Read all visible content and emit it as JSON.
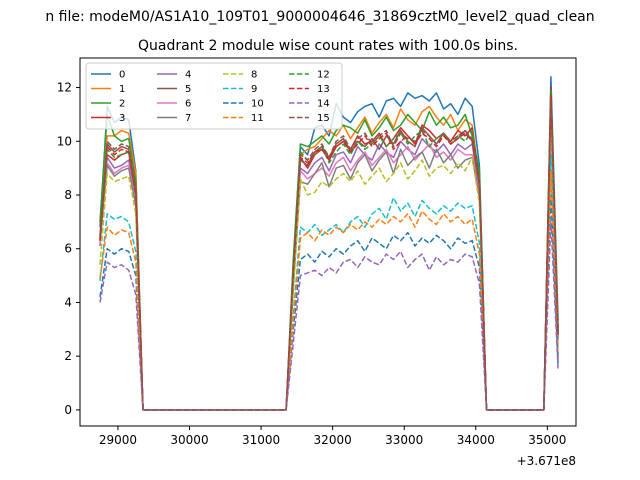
{
  "figure": {
    "suptitle": "n file: modeM0/AS1A10_109T01_9000004646_31869cztM0_level2_quad_clean",
    "title": "Quadrant 2 module wise count rates with 100.0s bins.",
    "offset_label": "+3.671e8"
  },
  "chart_data": {
    "type": "line",
    "title": "Quadrant 2 module wise count rates with 100.0s bins.",
    "xlabel": "",
    "ylabel": "",
    "x_offset": 367100000,
    "xlim": [
      28470,
      35400
    ],
    "ylim": [
      -0.6,
      13.1
    ],
    "x_ticks": [
      29000,
      30000,
      31000,
      32000,
      33000,
      34000,
      35000
    ],
    "y_ticks": [
      0,
      2,
      4,
      6,
      8,
      10,
      12
    ],
    "grid": false,
    "legend_position": "top-left",
    "legend_columns": 4,
    "x": [
      28750,
      28850,
      28950,
      29050,
      29150,
      29250,
      29350,
      29450,
      29550,
      29650,
      29750,
      29850,
      29950,
      30050,
      30150,
      30250,
      30350,
      30450,
      30550,
      30650,
      30750,
      30850,
      30950,
      31050,
      31150,
      31250,
      31350,
      31450,
      31550,
      31650,
      31750,
      31850,
      31950,
      32050,
      32150,
      32250,
      32350,
      32450,
      32550,
      32650,
      32750,
      32850,
      32950,
      33050,
      33150,
      33250,
      33350,
      33450,
      33550,
      33650,
      33750,
      33850,
      33950,
      34050,
      34150,
      34250,
      34350,
      34450,
      34550,
      34650,
      34750,
      34850,
      34950,
      35050,
      35150
    ],
    "series": [
      {
        "name": "0",
        "color": "#1f77b4",
        "style": "solid",
        "values": [
          6.8,
          11.3,
          10.7,
          10.9,
          10.8,
          8.9,
          0,
          0,
          0,
          0,
          0,
          0,
          0,
          0,
          0,
          0,
          0,
          0,
          0,
          0,
          0,
          0,
          0,
          0,
          0,
          0,
          0,
          5.5,
          9.8,
          9.5,
          10.5,
          10.6,
          10.2,
          11.4,
          10.9,
          10.7,
          11.1,
          11.3,
          11.4,
          10.9,
          11.5,
          11.6,
          11.3,
          11.8,
          11.6,
          11.7,
          11.5,
          11.8,
          11.2,
          11.4,
          11.0,
          11.6,
          11.3,
          9.1,
          0,
          0,
          0,
          0,
          0,
          0,
          0,
          0,
          0,
          12.4,
          3.3
        ]
      },
      {
        "name": "1",
        "color": "#ff7f0e",
        "style": "solid",
        "values": [
          6.3,
          10.2,
          10.2,
          10.4,
          10.3,
          8.8,
          0,
          0,
          0,
          0,
          0,
          0,
          0,
          0,
          0,
          0,
          0,
          0,
          0,
          0,
          0,
          0,
          0,
          0,
          0,
          0,
          0,
          5.0,
          9.5,
          9.7,
          9.8,
          10.1,
          10.4,
          10.2,
          10.6,
          10.1,
          10.5,
          10.9,
          10.3,
          10.7,
          11.0,
          10.5,
          11.2,
          10.8,
          10.6,
          11.1,
          11.3,
          10.9,
          10.6,
          11.0,
          10.4,
          10.8,
          10.6,
          8.6,
          0,
          0,
          0,
          0,
          0,
          0,
          0,
          0,
          0,
          11.6,
          3.0
        ]
      },
      {
        "name": "2",
        "color": "#2ca02c",
        "style": "solid",
        "values": [
          7.0,
          11.0,
          10.2,
          10.0,
          10.1,
          8.5,
          0,
          0,
          0,
          0,
          0,
          0,
          0,
          0,
          0,
          0,
          0,
          0,
          0,
          0,
          0,
          0,
          0,
          0,
          0,
          0,
          0,
          5.6,
          9.9,
          9.8,
          10.0,
          10.2,
          9.9,
          10.4,
          10.6,
          10.5,
          10.3,
          10.8,
          10.2,
          10.5,
          10.9,
          10.4,
          10.6,
          11.0,
          10.7,
          10.4,
          11.1,
          10.6,
          10.9,
          10.5,
          10.6,
          11.0,
          10.2,
          8.9,
          0,
          0,
          0,
          0,
          0,
          0,
          0,
          0,
          0,
          11.8,
          2.9
        ]
      },
      {
        "name": "3",
        "color": "#d62728",
        "style": "solid",
        "values": [
          6.5,
          9.5,
          9.3,
          9.5,
          9.6,
          8.0,
          0,
          0,
          0,
          0,
          0,
          0,
          0,
          0,
          0,
          0,
          0,
          0,
          0,
          0,
          0,
          0,
          0,
          0,
          0,
          0,
          0,
          5.0,
          9.4,
          9.0,
          9.5,
          9.7,
          9.3,
          9.8,
          10.0,
          9.7,
          10.2,
          9.9,
          10.0,
          10.3,
          9.8,
          10.1,
          10.5,
          10.2,
          9.9,
          10.6,
          10.4,
          10.1,
          10.3,
          10.0,
          10.4,
          10.2,
          10.5,
          8.5,
          0,
          0,
          0,
          0,
          0,
          0,
          0,
          0,
          0,
          12.0,
          2.8
        ]
      },
      {
        "name": "4",
        "color": "#9467bd",
        "style": "solid",
        "values": [
          6.1,
          9.4,
          9.0,
          9.1,
          9.3,
          7.8,
          0,
          0,
          0,
          0,
          0,
          0,
          0,
          0,
          0,
          0,
          0,
          0,
          0,
          0,
          0,
          0,
          0,
          0,
          0,
          0,
          0,
          4.8,
          9.0,
          8.8,
          9.2,
          9.4,
          8.9,
          9.5,
          9.6,
          9.2,
          9.8,
          9.5,
          9.3,
          9.9,
          9.6,
          9.4,
          10.0,
          9.7,
          9.5,
          10.1,
          9.8,
          9.6,
          9.9,
          9.5,
          9.9,
          9.7,
          9.9,
          8.2,
          0,
          0,
          0,
          0,
          0,
          0,
          0,
          0,
          0,
          11.0,
          2.7
        ]
      },
      {
        "name": "5",
        "color": "#8c564b",
        "style": "solid",
        "values": [
          6.4,
          9.9,
          9.6,
          9.8,
          9.7,
          8.2,
          0,
          0,
          0,
          0,
          0,
          0,
          0,
          0,
          0,
          0,
          0,
          0,
          0,
          0,
          0,
          0,
          0,
          0,
          0,
          0,
          0,
          5.1,
          9.3,
          9.1,
          9.6,
          9.8,
          9.4,
          9.9,
          10.1,
          9.6,
          10.0,
          9.8,
          10.1,
          9.7,
          10.2,
          9.9,
          10.4,
          10.0,
          9.8,
          10.5,
          10.2,
          9.9,
          10.3,
          9.9,
          10.1,
          10.4,
          10.0,
          8.4,
          0,
          0,
          0,
          0,
          0,
          0,
          0,
          0,
          0,
          11.4,
          2.8
        ]
      },
      {
        "name": "6",
        "color": "#e377c2",
        "style": "solid",
        "values": [
          6.2,
          9.2,
          8.8,
          9.0,
          9.1,
          7.7,
          0,
          0,
          0,
          0,
          0,
          0,
          0,
          0,
          0,
          0,
          0,
          0,
          0,
          0,
          0,
          0,
          0,
          0,
          0,
          0,
          0,
          4.7,
          8.9,
          8.6,
          8.8,
          9.0,
          8.7,
          9.2,
          9.4,
          8.9,
          9.3,
          9.6,
          9.1,
          9.4,
          9.7,
          9.2,
          9.5,
          9.8,
          9.3,
          9.6,
          9.9,
          9.4,
          9.6,
          9.3,
          9.7,
          9.5,
          9.5,
          8.0,
          0,
          0,
          0,
          0,
          0,
          0,
          0,
          0,
          0,
          10.9,
          2.6
        ]
      },
      {
        "name": "7",
        "color": "#7f7f7f",
        "style": "solid",
        "values": [
          6.3,
          9.1,
          8.7,
          8.9,
          9.0,
          7.6,
          0,
          0,
          0,
          0,
          0,
          0,
          0,
          0,
          0,
          0,
          0,
          0,
          0,
          0,
          0,
          0,
          0,
          0,
          0,
          0,
          0,
          4.6,
          8.5,
          8.4,
          8.8,
          9.2,
          8.3,
          9.0,
          9.1,
          8.6,
          9.2,
          9.5,
          8.9,
          9.3,
          9.6,
          8.8,
          9.7,
          9.1,
          9.4,
          9.6,
          9.0,
          9.7,
          9.2,
          9.5,
          9.0,
          9.3,
          9.4,
          7.9,
          0,
          0,
          0,
          0,
          0,
          0,
          0,
          0,
          0,
          11.2,
          2.7
        ]
      },
      {
        "name": "8",
        "color": "#bcbd22",
        "style": "dashed",
        "values": [
          5.4,
          8.8,
          8.5,
          8.6,
          8.7,
          7.3,
          0,
          0,
          0,
          0,
          0,
          0,
          0,
          0,
          0,
          0,
          0,
          0,
          0,
          0,
          0,
          0,
          0,
          0,
          0,
          0,
          0,
          4.4,
          8.6,
          8.0,
          8.1,
          8.5,
          8.3,
          8.6,
          8.8,
          8.5,
          8.9,
          8.4,
          8.7,
          9.0,
          8.5,
          8.8,
          9.2,
          8.6,
          8.9,
          9.3,
          8.7,
          9.0,
          9.1,
          8.8,
          9.2,
          8.9,
          9.4,
          7.7,
          0,
          0,
          0,
          0,
          0,
          0,
          0,
          0,
          0,
          10.8,
          2.3
        ]
      },
      {
        "name": "9",
        "color": "#17becf",
        "style": "dashed",
        "values": [
          4.8,
          7.3,
          7.1,
          7.2,
          7.0,
          5.9,
          0,
          0,
          0,
          0,
          0,
          0,
          0,
          0,
          0,
          0,
          0,
          0,
          0,
          0,
          0,
          0,
          0,
          0,
          0,
          0,
          0,
          3.5,
          6.8,
          6.6,
          6.9,
          6.5,
          6.7,
          6.9,
          6.6,
          7.0,
          7.2,
          6.8,
          7.3,
          7.5,
          7.1,
          7.9,
          7.4,
          7.7,
          7.2,
          7.8,
          7.5,
          7.3,
          7.6,
          7.4,
          7.7,
          7.5,
          7.6,
          6.2,
          0,
          0,
          0,
          0,
          0,
          0,
          0,
          0,
          0,
          9.5,
          2.0
        ]
      },
      {
        "name": "10",
        "color": "#1f77b4",
        "style": "dashed",
        "values": [
          4.2,
          6.0,
          5.8,
          6.0,
          5.9,
          5.0,
          0,
          0,
          0,
          0,
          0,
          0,
          0,
          0,
          0,
          0,
          0,
          0,
          0,
          0,
          0,
          0,
          0,
          0,
          0,
          0,
          0,
          3.0,
          5.6,
          5.8,
          5.5,
          5.9,
          5.7,
          6.0,
          5.8,
          6.1,
          6.3,
          5.9,
          6.4,
          6.2,
          6.0,
          6.5,
          6.3,
          6.6,
          6.1,
          6.4,
          6.2,
          6.5,
          6.3,
          6.0,
          6.4,
          6.2,
          6.3,
          5.3,
          0,
          0,
          0,
          0,
          0,
          0,
          0,
          0,
          0,
          8.0,
          1.7
        ]
      },
      {
        "name": "11",
        "color": "#ff7f0e",
        "style": "dashed",
        "values": [
          4.9,
          6.8,
          6.5,
          6.7,
          6.6,
          5.5,
          0,
          0,
          0,
          0,
          0,
          0,
          0,
          0,
          0,
          0,
          0,
          0,
          0,
          0,
          0,
          0,
          0,
          0,
          0,
          0,
          0,
          3.3,
          6.4,
          6.6,
          6.3,
          6.7,
          6.5,
          6.8,
          6.6,
          6.9,
          6.7,
          7.0,
          6.8,
          7.1,
          6.9,
          7.2,
          7.0,
          7.3,
          6.8,
          7.4,
          7.1,
          6.9,
          7.3,
          7.0,
          7.2,
          6.9,
          7.1,
          5.8,
          0,
          0,
          0,
          0,
          0,
          0,
          0,
          0,
          0,
          8.9,
          1.9
        ]
      },
      {
        "name": "12",
        "color": "#2ca02c",
        "style": "dashed",
        "values": [
          6.4,
          9.7,
          9.4,
          9.5,
          9.6,
          8.1,
          0,
          0,
          0,
          0,
          0,
          0,
          0,
          0,
          0,
          0,
          0,
          0,
          0,
          0,
          0,
          0,
          0,
          0,
          0,
          0,
          0,
          5.0,
          9.6,
          9.3,
          9.5,
          9.8,
          9.2,
          9.6,
          9.9,
          9.5,
          10.0,
          9.7,
          9.9,
          10.2,
          9.8,
          10.1,
          10.3,
          9.9,
          10.2,
          10.4,
          9.8,
          10.1,
          10.3,
          9.9,
          10.2,
          10.0,
          10.4,
          8.6,
          0,
          0,
          0,
          0,
          0,
          0,
          0,
          0,
          0,
          11.9,
          2.9
        ]
      },
      {
        "name": "13",
        "color": "#d62728",
        "style": "dashed",
        "values": [
          6.3,
          9.8,
          9.5,
          9.7,
          9.6,
          8.0,
          0,
          0,
          0,
          0,
          0,
          0,
          0,
          0,
          0,
          0,
          0,
          0,
          0,
          0,
          0,
          0,
          0,
          0,
          0,
          0,
          0,
          5.1,
          9.4,
          9.2,
          9.6,
          9.7,
          9.3,
          9.8,
          10.0,
          9.6,
          9.9,
          10.2,
          9.8,
          10.1,
          10.3,
          9.7,
          10.0,
          10.2,
          9.9,
          10.3,
          10.1,
          9.8,
          10.2,
          9.9,
          10.1,
          10.3,
          10.0,
          8.4,
          0,
          0,
          0,
          0,
          0,
          0,
          0,
          0,
          0,
          11.7,
          2.8
        ]
      },
      {
        "name": "14",
        "color": "#9467bd",
        "style": "dashed",
        "values": [
          4.0,
          5.5,
          5.3,
          5.4,
          5.2,
          4.3,
          0,
          0,
          0,
          0,
          0,
          0,
          0,
          0,
          0,
          0,
          0,
          0,
          0,
          0,
          0,
          0,
          0,
          0,
          0,
          0,
          0,
          2.5,
          5.0,
          5.1,
          5.2,
          5.0,
          5.3,
          5.1,
          5.5,
          5.6,
          5.3,
          5.7,
          5.5,
          5.4,
          5.8,
          5.6,
          5.9,
          5.3,
          5.6,
          5.8,
          5.2,
          5.7,
          5.4,
          5.6,
          5.5,
          5.8,
          5.7,
          4.7,
          0,
          0,
          0,
          0,
          0,
          0,
          0,
          0,
          0,
          7.0,
          1.5
        ]
      },
      {
        "name": "15",
        "color": "#8c564b",
        "style": "dashed",
        "values": [
          6.5,
          10.0,
          9.7,
          9.9,
          9.8,
          8.3,
          0,
          0,
          0,
          0,
          0,
          0,
          0,
          0,
          0,
          0,
          0,
          0,
          0,
          0,
          0,
          0,
          0,
          0,
          0,
          0,
          0,
          5.2,
          9.5,
          9.3,
          9.7,
          9.9,
          9.4,
          10.0,
          10.2,
          9.7,
          10.1,
          10.3,
          9.9,
          10.2,
          10.4,
          9.8,
          10.3,
          10.1,
          10.0,
          10.4,
          10.2,
          9.9,
          10.3,
          10.0,
          10.2,
          10.4,
          10.1,
          8.5,
          0,
          0,
          0,
          0,
          0,
          0,
          0,
          0,
          0,
          11.5,
          2.8
        ]
      }
    ]
  }
}
